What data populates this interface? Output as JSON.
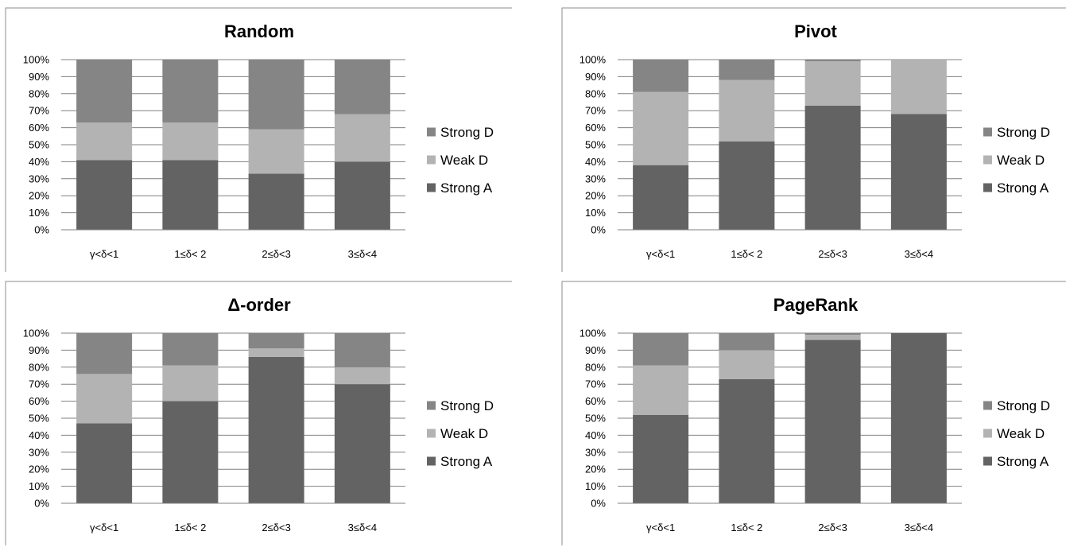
{
  "colors": {
    "Strong A": "#636363",
    "Weak D": "#b3b3b3",
    "Strong D": "#858585",
    "grid": "#808080",
    "frame": "#8c8c8c"
  },
  "chart_data": [
    {
      "type": "bar",
      "stacked": "percent",
      "title": "Random",
      "categories": [
        "γ<δ<1",
        "1≤δ< 2",
        "2≤δ<3",
        "3≤δ<4"
      ],
      "yticks": [
        "0%",
        "10%",
        "20%",
        "30%",
        "40%",
        "50%",
        "60%",
        "70%",
        "80%",
        "90%",
        "100%"
      ],
      "ylim": [
        0,
        100
      ],
      "grid": true,
      "legend_position": "right",
      "legend": [
        "Strong D",
        "Weak D",
        "Strong A"
      ],
      "series": [
        {
          "name": "Strong A",
          "values": [
            41,
            41,
            33,
            40
          ]
        },
        {
          "name": "Weak D",
          "values": [
            22,
            22,
            26,
            28
          ]
        },
        {
          "name": "Strong D",
          "values": [
            37,
            37,
            41,
            32
          ]
        }
      ]
    },
    {
      "type": "bar",
      "stacked": "percent",
      "title": "Pivot",
      "categories": [
        "γ<δ<1",
        "1≤δ< 2",
        "2≤δ<3",
        "3≤δ<4"
      ],
      "yticks": [
        "0%",
        "10%",
        "20%",
        "30%",
        "40%",
        "50%",
        "60%",
        "70%",
        "80%",
        "90%",
        "100%"
      ],
      "ylim": [
        0,
        100
      ],
      "grid": true,
      "legend_position": "right",
      "legend": [
        "Strong D",
        "Weak D",
        "Strong A"
      ],
      "series": [
        {
          "name": "Strong A",
          "values": [
            38,
            52,
            73,
            68
          ]
        },
        {
          "name": "Weak D",
          "values": [
            43,
            36,
            26,
            32
          ]
        },
        {
          "name": "Strong D",
          "values": [
            19,
            12,
            1,
            0
          ]
        }
      ]
    },
    {
      "type": "bar",
      "stacked": "percent",
      "title": "Δ-order",
      "categories": [
        "γ<δ<1",
        "1≤δ< 2",
        "2≤δ<3",
        "3≤δ<4"
      ],
      "yticks": [
        "0%",
        "10%",
        "20%",
        "30%",
        "40%",
        "50%",
        "60%",
        "70%",
        "80%",
        "90%",
        "100%"
      ],
      "ylim": [
        0,
        100
      ],
      "grid": true,
      "legend_position": "right",
      "legend": [
        "Strong D",
        "Weak D",
        "Strong A"
      ],
      "series": [
        {
          "name": "Strong A",
          "values": [
            47,
            60,
            86,
            70
          ]
        },
        {
          "name": "Weak D",
          "values": [
            29,
            21,
            5,
            10
          ]
        },
        {
          "name": "Strong D",
          "values": [
            24,
            19,
            9,
            20
          ]
        }
      ]
    },
    {
      "type": "bar",
      "stacked": "percent",
      "title": "PageRank",
      "categories": [
        "γ<δ<1",
        "1≤δ< 2",
        "2≤δ<3",
        "3≤δ<4"
      ],
      "yticks": [
        "0%",
        "10%",
        "20%",
        "30%",
        "40%",
        "50%",
        "60%",
        "70%",
        "80%",
        "90%",
        "100%"
      ],
      "ylim": [
        0,
        100
      ],
      "grid": true,
      "legend_position": "right",
      "legend": [
        "Strong D",
        "Weak D",
        "Strong A"
      ],
      "series": [
        {
          "name": "Strong A",
          "values": [
            52,
            73,
            96,
            100
          ]
        },
        {
          "name": "Weak D",
          "values": [
            29,
            17,
            3,
            0
          ]
        },
        {
          "name": "Strong D",
          "values": [
            19,
            10,
            1,
            0
          ]
        }
      ]
    }
  ]
}
